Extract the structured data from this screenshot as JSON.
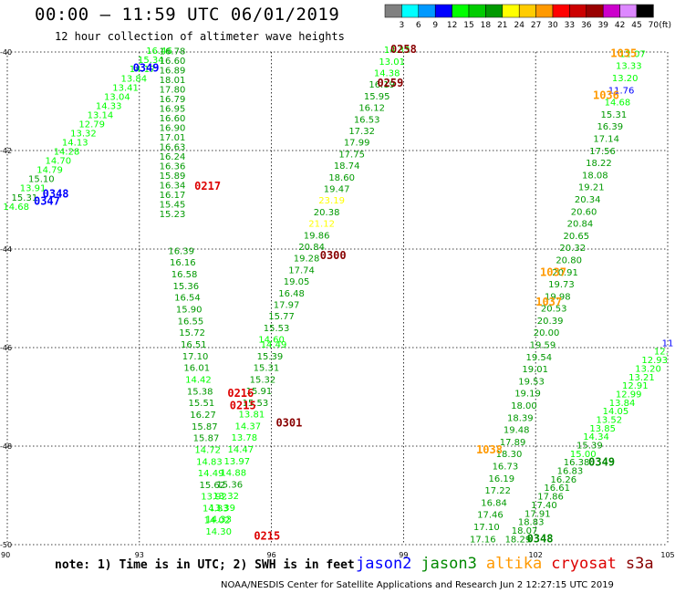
{
  "header": {
    "title": "00:00 – 11:59 UTC 06/01/2019",
    "subtitle": "12 hour collection of altimeter wave heights",
    "unit_label": "(ft)"
  },
  "footer": {
    "note": "note: 1) Time is in UTC; 2) SWH is in feet",
    "credit": "NOAA/NESDIS Center for Satellite Applications and Research   Jun  2 12:27:15 UTC 2019",
    "satellites": [
      {
        "name": "jason2",
        "color": "#0000ff"
      },
      {
        "name": "jason3",
        "color": "#008800"
      },
      {
        "name": "altika",
        "color": "#ff9900"
      },
      {
        "name": "cryosat",
        "color": "#dd0000"
      },
      {
        "name": "s3a",
        "color": "#880000"
      }
    ]
  },
  "chart_data": {
    "type": "scatter",
    "title": "00:00 – 11:59 UTC 06/01/2019",
    "subtitle": "12 hour collection of altimeter wave heights",
    "xlim": [
      90,
      105
    ],
    "ylim": [
      -50,
      -40
    ],
    "x_ticks": [
      "90",
      "93",
      "96",
      "99",
      "102",
      "105"
    ],
    "y_ticks": [
      "-40",
      "-42",
      "-44",
      "-46",
      "-48",
      "-50"
    ],
    "grid": true,
    "colorbar": {
      "unit": "(ft)",
      "ticks": [
        "3",
        "6",
        "9",
        "12",
        "15",
        "18",
        "21",
        "24",
        "27",
        "30",
        "33",
        "36",
        "39",
        "42",
        "45",
        "70"
      ],
      "colors": [
        "#808080",
        "#00ffff",
        "#0099ff",
        "#0000ff",
        "#00ff00",
        "#00cc00",
        "#009900",
        "#ffff00",
        "#ffcc00",
        "#ff9900",
        "#ff0000",
        "#cc0000",
        "#990000",
        "#cc00cc",
        "#dd88ff",
        "#000000"
      ]
    },
    "time_labels": [
      {
        "text": "0258",
        "lon": 99.0,
        "lat": -40.02,
        "color": "#880000"
      },
      {
        "text": "0259",
        "lon": 98.7,
        "lat": -40.7,
        "color": "#880000"
      },
      {
        "text": "0300",
        "lon": 97.4,
        "lat": -44.2,
        "color": "#880000"
      },
      {
        "text": "0301",
        "lon": 96.4,
        "lat": -47.6,
        "color": "#880000"
      },
      {
        "text": "0349",
        "lon": 93.15,
        "lat": -40.4,
        "color": "#0000ff"
      },
      {
        "text": "0348",
        "lon": 91.1,
        "lat": -42.95,
        "color": "#0000ff"
      },
      {
        "text": "0347",
        "lon": 90.9,
        "lat": -43.1,
        "color": "#0000ff"
      },
      {
        "text": "0217",
        "lon": 94.55,
        "lat": -42.8,
        "color": "#dd0000"
      },
      {
        "text": "0216",
        "lon": 95.3,
        "lat": -47.0,
        "color": "#dd0000"
      },
      {
        "text": "0215",
        "lon": 95.35,
        "lat": -47.25,
        "color": "#dd0000"
      },
      {
        "text": "0215",
        "lon": 95.9,
        "lat": -49.9,
        "color": "#dd0000"
      },
      {
        "text": "1035",
        "lon": 104.0,
        "lat": -40.1,
        "color": "#ff9900"
      },
      {
        "text": "1036",
        "lon": 103.6,
        "lat": -40.95,
        "color": "#ff9900"
      },
      {
        "text": "1037",
        "lon": 102.4,
        "lat": -44.55,
        "color": "#ff9900"
      },
      {
        "text": "1037",
        "lon": 102.3,
        "lat": -45.15,
        "color": "#ff9900"
      },
      {
        "text": "1038",
        "lon": 100.95,
        "lat": -48.15,
        "color": "#ff9900"
      },
      {
        "text": "0349",
        "lon": 103.5,
        "lat": -48.4,
        "color": "#008800"
      },
      {
        "text": "0348",
        "lon": 102.1,
        "lat": -49.95,
        "color": "#008800"
      }
    ],
    "tracks": [
      {
        "satellite": "jason2",
        "pass": "0349",
        "start": [
          93.45,
          -40.04
        ],
        "end": [
          90.2,
          -43.2
        ],
        "labels": [
          {
            "v": "16.46",
            "c": "#00ff00"
          },
          {
            "v": "15.34",
            "c": "#00ff00"
          },
          {
            "v": "14.17",
            "c": "#00ff00"
          },
          {
            "v": "13.84",
            "c": "#00ff00"
          },
          {
            "v": "13.41",
            "c": "#00ff00"
          },
          {
            "v": "13.04",
            "c": "#00ff00"
          },
          {
            "v": "14.33",
            "c": "#00ff00"
          },
          {
            "v": "13.14",
            "c": "#00ff00"
          },
          {
            "v": "12.79",
            "c": "#00ff00"
          },
          {
            "v": "13.32",
            "c": "#00ff00"
          },
          {
            "v": "14.13",
            "c": "#00ff00"
          },
          {
            "v": "14.28",
            "c": "#00ff00"
          },
          {
            "v": "14.70",
            "c": "#00ff00"
          },
          {
            "v": "14.79",
            "c": "#00ff00"
          },
          {
            "v": "15.10",
            "c": "#009900"
          },
          {
            "v": "13.91",
            "c": "#00ff00"
          },
          {
            "v": "15.31",
            "c": "#009900"
          },
          {
            "v": "14.68",
            "c": "#00ff00"
          }
        ]
      },
      {
        "satellite": "cryosat",
        "pass": "0217",
        "start": [
          93.75,
          -40.05
        ],
        "end": [
          93.75,
          -43.35
        ],
        "labels": [
          {
            "v": "16.78",
            "c": "#009900"
          },
          {
            "v": "16.60",
            "c": "#009900"
          },
          {
            "v": "16.89",
            "c": "#009900"
          },
          {
            "v": "18.01",
            "c": "#009900"
          },
          {
            "v": "17.80",
            "c": "#009900"
          },
          {
            "v": "16.79",
            "c": "#009900"
          },
          {
            "v": "16.95",
            "c": "#009900"
          },
          {
            "v": "16.60",
            "c": "#009900"
          },
          {
            "v": "16.90",
            "c": "#009900"
          },
          {
            "v": "17.01",
            "c": "#009900"
          },
          {
            "v": "16.63",
            "c": "#009900"
          },
          {
            "v": "16.24",
            "c": "#009900"
          },
          {
            "v": "16.36",
            "c": "#009900"
          },
          {
            "v": "15.89",
            "c": "#009900"
          },
          {
            "v": "16.34",
            "c": "#009900"
          },
          {
            "v": "16.17",
            "c": "#009900"
          },
          {
            "v": "15.45",
            "c": "#009900"
          },
          {
            "v": "15.23",
            "c": "#009900"
          }
        ]
      },
      {
        "satellite": "cryosat",
        "pass": "0216",
        "start": [
          93.95,
          -44.1
        ],
        "end": [
          94.8,
          -49.8
        ],
        "labels": [
          {
            "v": "16.39",
            "c": "#009900"
          },
          {
            "v": "16.16",
            "c": "#009900"
          },
          {
            "v": "16.58",
            "c": "#009900"
          },
          {
            "v": "15.36",
            "c": "#009900"
          },
          {
            "v": "16.54",
            "c": "#009900"
          },
          {
            "v": "15.90",
            "c": "#009900"
          },
          {
            "v": "16.55",
            "c": "#009900"
          },
          {
            "v": "15.72",
            "c": "#009900"
          },
          {
            "v": "16.51",
            "c": "#009900"
          },
          {
            "v": "17.10",
            "c": "#009900"
          },
          {
            "v": "16.01",
            "c": "#009900"
          },
          {
            "v": "14.42",
            "c": "#00ff00"
          },
          {
            "v": "15.38",
            "c": "#009900"
          },
          {
            "v": "15.51",
            "c": "#009900"
          },
          {
            "v": "16.27",
            "c": "#009900"
          },
          {
            "v": "15.87",
            "c": "#009900"
          },
          {
            "v": "15.87",
            "c": "#009900"
          },
          {
            "v": "14.72",
            "c": "#00ff00"
          },
          {
            "v": "14.83",
            "c": "#00ff00"
          },
          {
            "v": "14.49",
            "c": "#00ff00"
          },
          {
            "v": "15.62",
            "c": "#009900"
          },
          {
            "v": "13.92",
            "c": "#00ff00"
          },
          {
            "v": "14.83",
            "c": "#00ff00"
          },
          {
            "v": "14.02",
            "c": "#00ff00"
          },
          {
            "v": "14.30",
            "c": "#00ff00"
          }
        ]
      },
      {
        "satellite": "jason3",
        "pass": "cross",
        "start": [
          96.05,
          -46.0
        ],
        "end": [
          94.8,
          -49.55
        ],
        "labels": [
          {
            "v": "14.49",
            "c": "#00ff00"
          },
          {
            "v": "15.39",
            "c": "#009900"
          },
          {
            "v": "15.31",
            "c": "#009900"
          },
          {
            "v": "15.32",
            "c": "#009900"
          },
          {
            "v": "15.91",
            "c": "#009900"
          },
          {
            "v": "15.53",
            "c": "#009900"
          },
          {
            "v": "13.81",
            "c": "#00ff00"
          },
          {
            "v": "14.37",
            "c": "#00ff00"
          },
          {
            "v": "13.78",
            "c": "#00ff00"
          },
          {
            "v": "14.47",
            "c": "#00ff00"
          },
          {
            "v": "13.97",
            "c": "#00ff00"
          },
          {
            "v": "14.88",
            "c": "#00ff00"
          },
          {
            "v": "15.36",
            "c": "#009900"
          },
          {
            "v": "13.32",
            "c": "#00ff00"
          },
          {
            "v": "13.39",
            "c": "#00ff00"
          },
          {
            "v": "14.33",
            "c": "#00ff00"
          }
        ]
      },
      {
        "satellite": "s3a",
        "pass": "0258",
        "start": [
          98.85,
          -40.02
        ],
        "end": [
          96.0,
          -45.9
        ],
        "labels": [
          {
            "v": "14.33",
            "c": "#00ff00"
          },
          {
            "v": "13.01",
            "c": "#00ff00"
          },
          {
            "v": "14.38",
            "c": "#00ff00"
          },
          {
            "v": "16.19",
            "c": "#009900"
          },
          {
            "v": "15.95",
            "c": "#009900"
          },
          {
            "v": "16.12",
            "c": "#009900"
          },
          {
            "v": "16.53",
            "c": "#009900"
          },
          {
            "v": "17.32",
            "c": "#009900"
          },
          {
            "v": "17.99",
            "c": "#009900"
          },
          {
            "v": "17.75",
            "c": "#009900"
          },
          {
            "v": "18.74",
            "c": "#009900"
          },
          {
            "v": "18.60",
            "c": "#009900"
          },
          {
            "v": "19.47",
            "c": "#009900"
          },
          {
            "v": "23.19",
            "c": "#ffff00"
          },
          {
            "v": "20.38",
            "c": "#009900"
          },
          {
            "v": "21.12",
            "c": "#ffff00"
          },
          {
            "v": "19.86",
            "c": "#009900"
          },
          {
            "v": "20.84",
            "c": "#009900"
          },
          {
            "v": "19.28",
            "c": "#009900"
          },
          {
            "v": "17.74",
            "c": "#009900"
          },
          {
            "v": "19.05",
            "c": "#009900"
          },
          {
            "v": "16.48",
            "c": "#009900"
          },
          {
            "v": "17.97",
            "c": "#009900"
          },
          {
            "v": "15.77",
            "c": "#009900"
          },
          {
            "v": "15.53",
            "c": "#009900"
          },
          {
            "v": "14.60",
            "c": "#00ff00"
          }
        ]
      },
      {
        "satellite": "altika",
        "pass": "1035",
        "start": [
          104.2,
          -40.1
        ],
        "end": [
          100.8,
          -49.95
        ],
        "labels": [
          {
            "v": "12.07",
            "c": "#00ff00"
          },
          {
            "v": "13.33",
            "c": "#00ff00"
          },
          {
            "v": "13.20",
            "c": "#00ff00"
          },
          {
            "v": "11.76",
            "c": "#0000ff"
          },
          {
            "v": "14.68",
            "c": "#00ff00"
          },
          {
            "v": "15.31",
            "c": "#009900"
          },
          {
            "v": "16.39",
            "c": "#009900"
          },
          {
            "v": "17.14",
            "c": "#009900"
          },
          {
            "v": "17.56",
            "c": "#009900"
          },
          {
            "v": "18.22",
            "c": "#009900"
          },
          {
            "v": "18.08",
            "c": "#009900"
          },
          {
            "v": "19.21",
            "c": "#009900"
          },
          {
            "v": "20.34",
            "c": "#009900"
          },
          {
            "v": "20.60",
            "c": "#009900"
          },
          {
            "v": "20.84",
            "c": "#009900"
          },
          {
            "v": "20.65",
            "c": "#009900"
          },
          {
            "v": "20.32",
            "c": "#009900"
          },
          {
            "v": "20.80",
            "c": "#009900"
          },
          {
            "v": "20.91",
            "c": "#009900"
          },
          {
            "v": "19.73",
            "c": "#009900"
          },
          {
            "v": "19.98",
            "c": "#009900"
          },
          {
            "v": "20.53",
            "c": "#009900"
          },
          {
            "v": "20.39",
            "c": "#009900"
          },
          {
            "v": "20.00",
            "c": "#009900"
          },
          {
            "v": "19.59",
            "c": "#009900"
          },
          {
            "v": "19.54",
            "c": "#009900"
          },
          {
            "v": "19.01",
            "c": "#009900"
          },
          {
            "v": "19.53",
            "c": "#009900"
          },
          {
            "v": "19.19",
            "c": "#009900"
          },
          {
            "v": "18.00",
            "c": "#009900"
          },
          {
            "v": "18.39",
            "c": "#009900"
          },
          {
            "v": "19.48",
            "c": "#009900"
          },
          {
            "v": "17.89",
            "c": "#009900"
          },
          {
            "v": "18.30",
            "c": "#009900"
          },
          {
            "v": "16.73",
            "c": "#009900"
          },
          {
            "v": "16.19",
            "c": "#009900"
          },
          {
            "v": "17.22",
            "c": "#009900"
          },
          {
            "v": "16.84",
            "c": "#009900"
          },
          {
            "v": "17.46",
            "c": "#009900"
          },
          {
            "v": "17.10",
            "c": "#009900"
          },
          {
            "v": "17.16",
            "c": "#009900"
          }
        ]
      },
      {
        "satellite": "jason3",
        "pass": "0349",
        "start": [
          105.0,
          -45.97
        ],
        "end": [
          101.6,
          -49.95
        ],
        "labels": [
          {
            "v": "11",
            "c": "#0000ff"
          },
          {
            "v": "12.",
            "c": "#00ff00"
          },
          {
            "v": "12.93",
            "c": "#00ff00"
          },
          {
            "v": "13.20",
            "c": "#00ff00"
          },
          {
            "v": "13.21",
            "c": "#00ff00"
          },
          {
            "v": "12.91",
            "c": "#00ff00"
          },
          {
            "v": "12.99",
            "c": "#00ff00"
          },
          {
            "v": "13.84",
            "c": "#00ff00"
          },
          {
            "v": "14.05",
            "c": "#00ff00"
          },
          {
            "v": "13.52",
            "c": "#00ff00"
          },
          {
            "v": "13.85",
            "c": "#00ff00"
          },
          {
            "v": "14.34",
            "c": "#00ff00"
          },
          {
            "v": "15.39",
            "c": "#009900"
          },
          {
            "v": "15.00",
            "c": "#00ff00"
          },
          {
            "v": "16.38",
            "c": "#009900"
          },
          {
            "v": "16.83",
            "c": "#009900"
          },
          {
            "v": "16.26",
            "c": "#009900"
          },
          {
            "v": "16.61",
            "c": "#009900"
          },
          {
            "v": "17.86",
            "c": "#009900"
          },
          {
            "v": "17.40",
            "c": "#009900"
          },
          {
            "v": "17.91",
            "c": "#009900"
          },
          {
            "v": "18.83",
            "c": "#009900"
          },
          {
            "v": "18.07",
            "c": "#009900"
          },
          {
            "v": "18.29",
            "c": "#009900"
          }
        ]
      }
    ]
  }
}
